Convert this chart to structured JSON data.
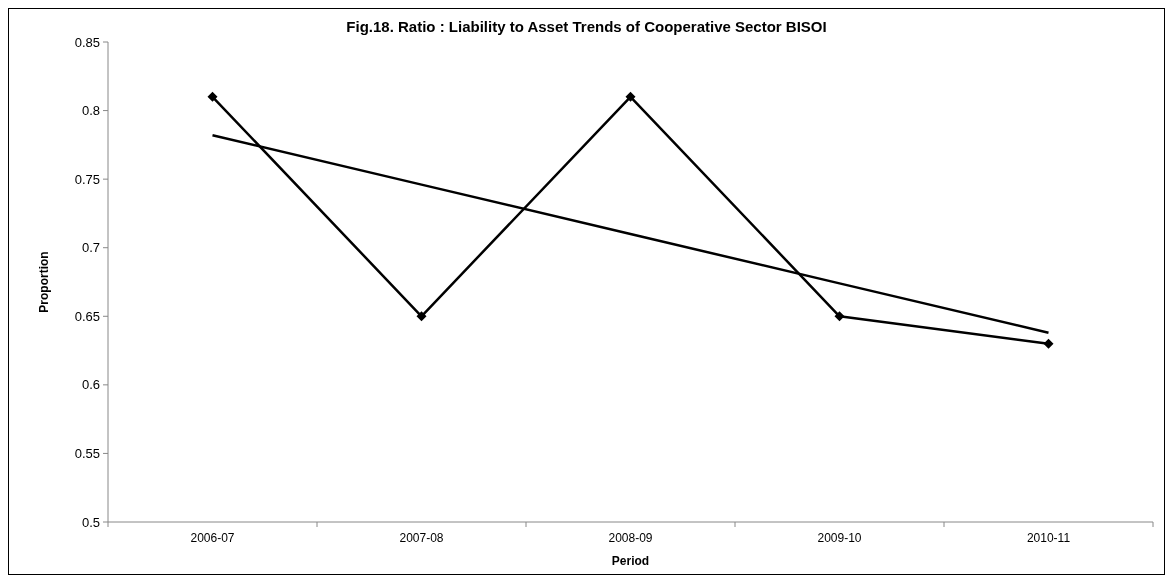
{
  "chart_data": {
    "type": "line",
    "title": "Fig.18. Ratio : Liability to Asset Trends of Cooperative Sector BISOI",
    "xlabel": "Period",
    "ylabel": "Proportion",
    "categories": [
      "2006-07",
      "2007-08",
      "2008-09",
      "2009-10",
      "2010-11"
    ],
    "series": [
      {
        "color": "#000000",
        "values": [
          0.81,
          0.65,
          0.81,
          0.65,
          0.63
        ],
        "marker": "diamond"
      },
      {
        "type": "line",
        "color": "#000000",
        "values": [
          0.782,
          0.746,
          0.71,
          0.674,
          0.638
        ],
        "marker": "none"
      }
    ],
    "ylim": [
      0.5,
      0.85
    ],
    "yticks": [
      0.5,
      0.55,
      0.6,
      0.65,
      0.7,
      0.75,
      0.8,
      0.85
    ],
    "grid": false,
    "line_style": "solid"
  }
}
